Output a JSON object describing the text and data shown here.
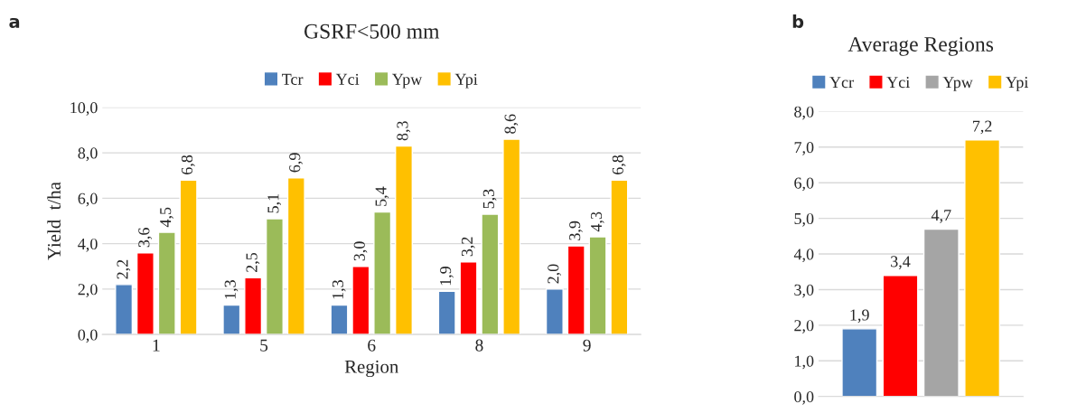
{
  "chart_data": [
    {
      "type": "bar",
      "title": "GSRF<500 mm",
      "xlabel": "Region",
      "ylabel": "Yield  t/ha",
      "annotations": [
        "a"
      ],
      "categories": [
        "1",
        "5",
        "6",
        "8",
        "9"
      ],
      "series": [
        {
          "name": "Tcr",
          "color": "#4f81bd",
          "values": [
            2.2,
            1.3,
            1.3,
            1.9,
            2.0
          ],
          "value_labels": [
            "2,2",
            "1,3",
            "1,3",
            "1,9",
            "2,0"
          ]
        },
        {
          "name": "Yci",
          "color": "#ff0000",
          "values": [
            3.6,
            2.5,
            3.0,
            3.2,
            3.9
          ],
          "value_labels": [
            "3,6",
            "2,5",
            "3,0",
            "3,2",
            "3,9"
          ]
        },
        {
          "name": "Ypw",
          "color": "#9bbb59",
          "values": [
            4.5,
            5.1,
            5.4,
            5.3,
            4.3
          ],
          "value_labels": [
            "4,5",
            "5,1",
            "5,4",
            "5,3",
            "4,3"
          ]
        },
        {
          "name": "Ypi",
          "color": "#ffc000",
          "values": [
            6.8,
            6.9,
            8.3,
            8.6,
            6.8
          ],
          "value_labels": [
            "6,8",
            "6,9",
            "8,3",
            "8,6",
            "6,8"
          ]
        }
      ],
      "ylim": [
        0,
        10
      ],
      "yticks": [
        {
          "value": 0,
          "label": "0,0"
        },
        {
          "value": 2,
          "label": "2,0"
        },
        {
          "value": 4,
          "label": "4,0"
        },
        {
          "value": 6,
          "label": "6,0"
        },
        {
          "value": 8,
          "label": "8,0"
        },
        {
          "value": 10,
          "label": "10,0"
        }
      ],
      "grid": "y",
      "legend": "top"
    },
    {
      "type": "bar",
      "title": "Average Regions",
      "annotations": [
        "b"
      ],
      "categories": [
        null
      ],
      "series": [
        {
          "name": "Ycr",
          "color": "#4f81bd",
          "values": [
            1.9
          ],
          "value_labels": [
            "1,9"
          ]
        },
        {
          "name": "Yci",
          "color": "#ff0000",
          "values": [
            3.4
          ],
          "value_labels": [
            "3,4"
          ]
        },
        {
          "name": "Ypw",
          "color": "#a5a5a5",
          "values": [
            4.7
          ],
          "value_labels": [
            "4,7"
          ]
        },
        {
          "name": "Ypi",
          "color": "#ffc000",
          "values": [
            7.2
          ],
          "value_labels": [
            "7,2"
          ]
        }
      ],
      "ylim": [
        0,
        8
      ],
      "yticks": [
        {
          "value": 0,
          "label": "0,0"
        },
        {
          "value": 1,
          "label": "1,0"
        },
        {
          "value": 2,
          "label": "2,0"
        },
        {
          "value": 3,
          "label": "3,0"
        },
        {
          "value": 4,
          "label": "4,0"
        },
        {
          "value": 5,
          "label": "5,0"
        },
        {
          "value": 6,
          "label": "6,0"
        },
        {
          "value": 7,
          "label": "7,0"
        },
        {
          "value": 8,
          "label": "8,0"
        }
      ],
      "grid": "y",
      "legend": "top"
    }
  ]
}
